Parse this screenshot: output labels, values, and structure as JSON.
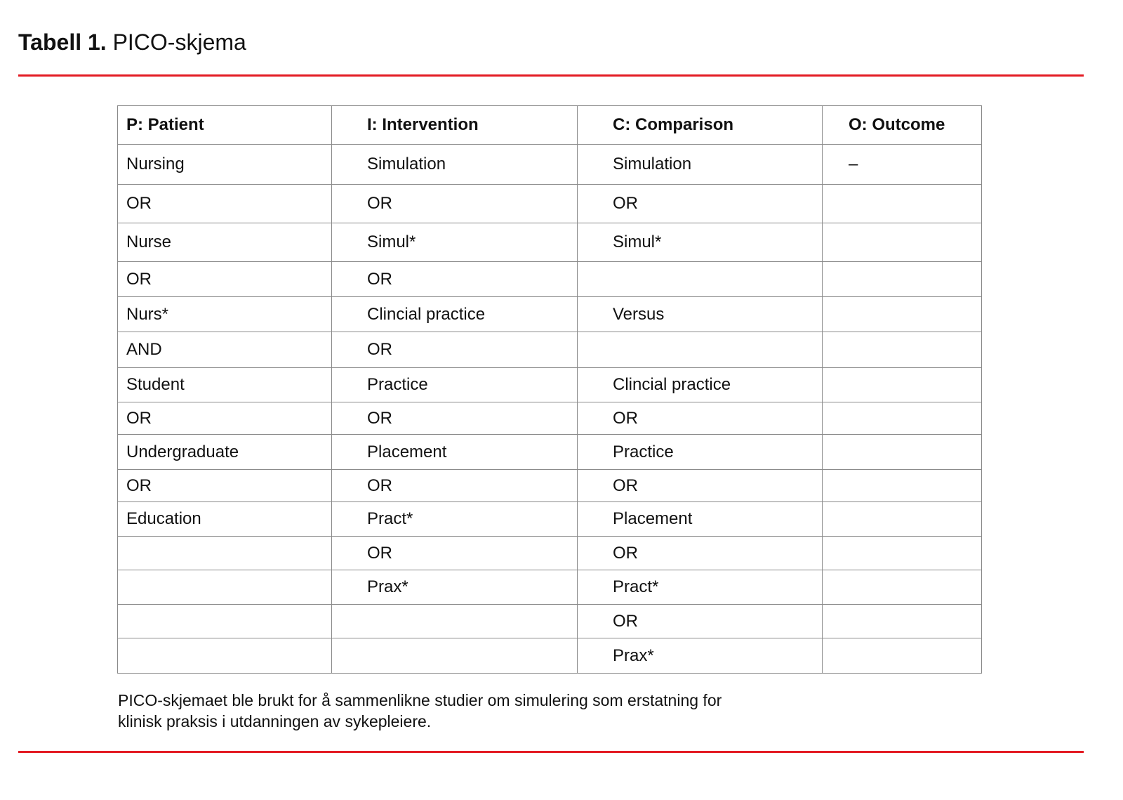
{
  "title": {
    "label": "Tabell 1.",
    "text": "PICO-skjema"
  },
  "accent_color": "#e31b23",
  "table": {
    "headers": [
      "P: Patient",
      "I: Intervention",
      "C: Comparison",
      "O: Outcome"
    ],
    "rows": [
      [
        "Nursing",
        "Simulation",
        "Simulation",
        "–"
      ],
      [
        "OR",
        "OR",
        "OR",
        ""
      ],
      [
        "Nurse",
        "Simul*",
        "Simul*",
        ""
      ],
      [
        "OR",
        "OR",
        "",
        ""
      ],
      [
        "Nurs*",
        "Clincial practice",
        "Versus",
        ""
      ],
      [
        "AND",
        "OR",
        "",
        ""
      ],
      [
        "Student",
        "Practice",
        "Clincial practice",
        ""
      ],
      [
        "OR",
        "OR",
        "OR",
        ""
      ],
      [
        "Undergraduate",
        "Placement",
        "Practice",
        ""
      ],
      [
        "OR",
        "OR",
        "OR",
        ""
      ],
      [
        "Education",
        "Pract*",
        "Placement",
        ""
      ],
      [
        "",
        "OR",
        "OR",
        ""
      ],
      [
        "",
        "Prax*",
        "Pract*",
        ""
      ],
      [
        "",
        "",
        "OR",
        ""
      ],
      [
        "",
        "",
        "Prax*",
        ""
      ]
    ]
  },
  "caption": "PICO-skjemaet ble brukt for å sammenlikne studier om simulering som erstatning for klinisk praksis i utdanningen av sykepleiere."
}
